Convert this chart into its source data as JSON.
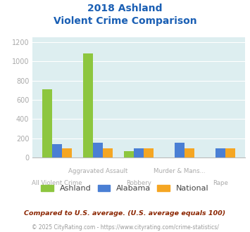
{
  "title_line1": "2018 Ashland",
  "title_line2": "Violent Crime Comparison",
  "categories": [
    "All Violent Crime",
    "Aggravated Assault",
    "Robbery",
    "Murder & Mans...",
    "Rape"
  ],
  "ashland": [
    710,
    1080,
    65,
    0,
    0
  ],
  "alabama": [
    140,
    155,
    100,
    155,
    100
  ],
  "national": [
    100,
    100,
    100,
    100,
    100
  ],
  "color_ashland": "#8dc63f",
  "color_alabama": "#4a7fd4",
  "color_national": "#f5a623",
  "ylim": [
    0,
    1250
  ],
  "yticks": [
    0,
    200,
    400,
    600,
    800,
    1000,
    1200
  ],
  "footer1": "Compared to U.S. average. (U.S. average equals 100)",
  "footer2": "© 2025 CityRating.com - https://www.cityrating.com/crime-statistics/",
  "bg_color": "#ddeef0",
  "title_color": "#1a5fb4",
  "tick_color": "#aaaaaa",
  "label_color": "#aaaaaa",
  "footer1_color": "#8b2500",
  "footer2_color": "#999999",
  "footer2_link_color": "#4472c4"
}
